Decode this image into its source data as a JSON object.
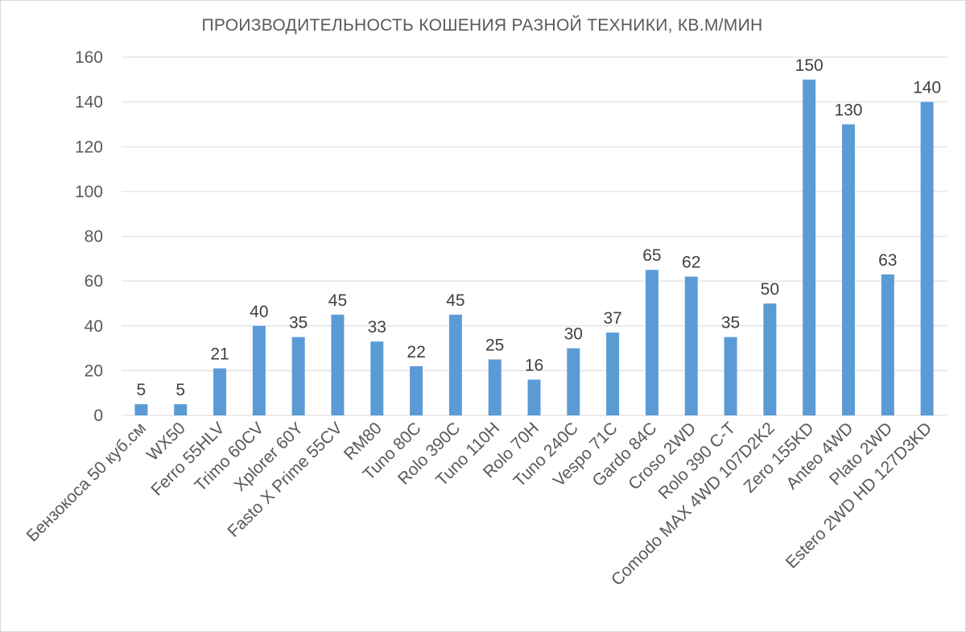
{
  "chart_data": {
    "type": "bar",
    "title": "ПРОИЗВОДИТЕЛЬНОСТЬ КОШЕНИЯ РАЗНОЙ ТЕХНИКИ, КВ.М/МИН",
    "xlabel": "",
    "ylabel": "",
    "ylim": [
      0,
      160
    ],
    "yticks": [
      0,
      20,
      40,
      60,
      80,
      100,
      120,
      140,
      160
    ],
    "grid": true,
    "legend": "none",
    "bar_color": "#5b9bd5",
    "categories": [
      "Бензокоса 50 куб.см",
      "WX50",
      "Ferro 55HLV",
      "Trimo 60CV",
      "Xplorer 60Y",
      "Fasto X Prime 55CV",
      "RM80",
      "Tuno 80C",
      "Rolo 390C",
      "Tuno 110H",
      "Rolo 70H",
      "Tuno 240C",
      "Vespo 71C",
      "Gardo 84C",
      "Croso 2WD",
      "Rolo 390 C-T",
      "Comodo MAX 4WD 107D2K2",
      "Zero 155KD",
      "Anteo 4WD",
      "Plato 2WD",
      "Estero 2WD HD 127D3KD"
    ],
    "values": [
      5,
      5,
      21,
      40,
      35,
      45,
      33,
      22,
      45,
      25,
      16,
      30,
      37,
      65,
      62,
      35,
      50,
      150,
      130,
      63,
      140
    ]
  }
}
